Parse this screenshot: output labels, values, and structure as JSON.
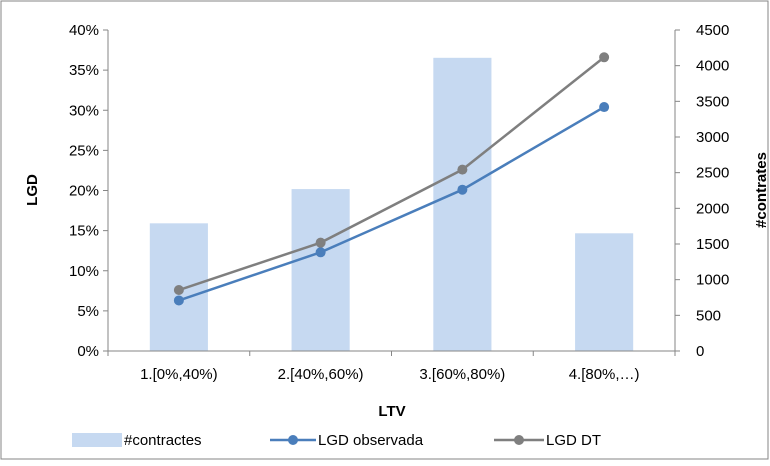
{
  "chart_data": {
    "type": "bar+line",
    "categories": [
      "1.[0%,40%)",
      "2.[40%,60%)",
      "3.[60%,80%)",
      "4.[80%,…)"
    ],
    "xlabel": "LTV",
    "ylabel_left": "LGD",
    "ylabel_right": "#contrates",
    "ylim_left": [
      0,
      40
    ],
    "yticks_left": [
      "0%",
      "5%",
      "10%",
      "15%",
      "20%",
      "25%",
      "30%",
      "35%",
      "40%"
    ],
    "ylim_right": [
      0,
      4500
    ],
    "yticks_right": [
      "0",
      "500",
      "1000",
      "1500",
      "2000",
      "2500",
      "3000",
      "3500",
      "4000",
      "4500"
    ],
    "grid": false,
    "legend_position": "bottom",
    "series": [
      {
        "name": "#contractes",
        "kind": "bar",
        "axis": "right",
        "color": "#c6d9f1",
        "values": [
          1790,
          2270,
          4110,
          1650
        ]
      },
      {
        "name": "LGD observada",
        "kind": "line",
        "axis": "left",
        "color": "#4a7ebb",
        "values": [
          6.3,
          12.3,
          20.1,
          30.4
        ]
      },
      {
        "name": "LGD DT",
        "kind": "line",
        "axis": "left",
        "color": "#7f7f7f",
        "values": [
          7.6,
          13.5,
          22.6,
          36.6
        ]
      }
    ]
  }
}
